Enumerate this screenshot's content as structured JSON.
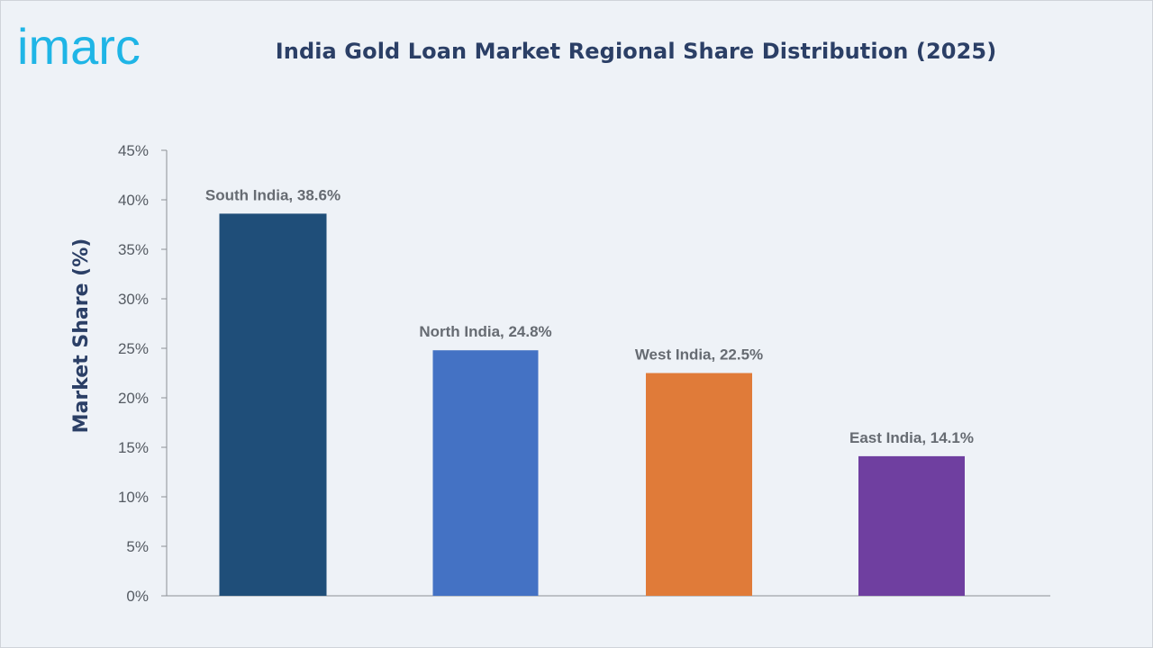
{
  "brand": {
    "name": "imarc",
    "color": "#1fb5e6"
  },
  "chart_data": {
    "type": "bar",
    "title": "India Gold Loan Market Regional Share Distribution (2025)",
    "ylabel": "Market Share (%)",
    "xlabel": "",
    "categories": [
      "South India",
      "North India",
      "West India",
      "East India"
    ],
    "values": [
      38.6,
      24.8,
      22.5,
      14.1
    ],
    "data_labels": [
      "South India, 38.6%",
      "North India, 24.8%",
      "West India, 22.5%",
      "East India, 14.1%"
    ],
    "colors": [
      "#1f4e79",
      "#4472c4",
      "#e07b39",
      "#6f3fa0"
    ],
    "ylim": [
      0,
      45
    ],
    "yticks": [
      0,
      5,
      10,
      15,
      20,
      25,
      30,
      35,
      40,
      45
    ],
    "ytick_labels": [
      "0%",
      "5%",
      "10%",
      "15%",
      "20%",
      "25%",
      "30%",
      "35%",
      "40%",
      "45%"
    ],
    "grid": false,
    "legend": "none"
  }
}
